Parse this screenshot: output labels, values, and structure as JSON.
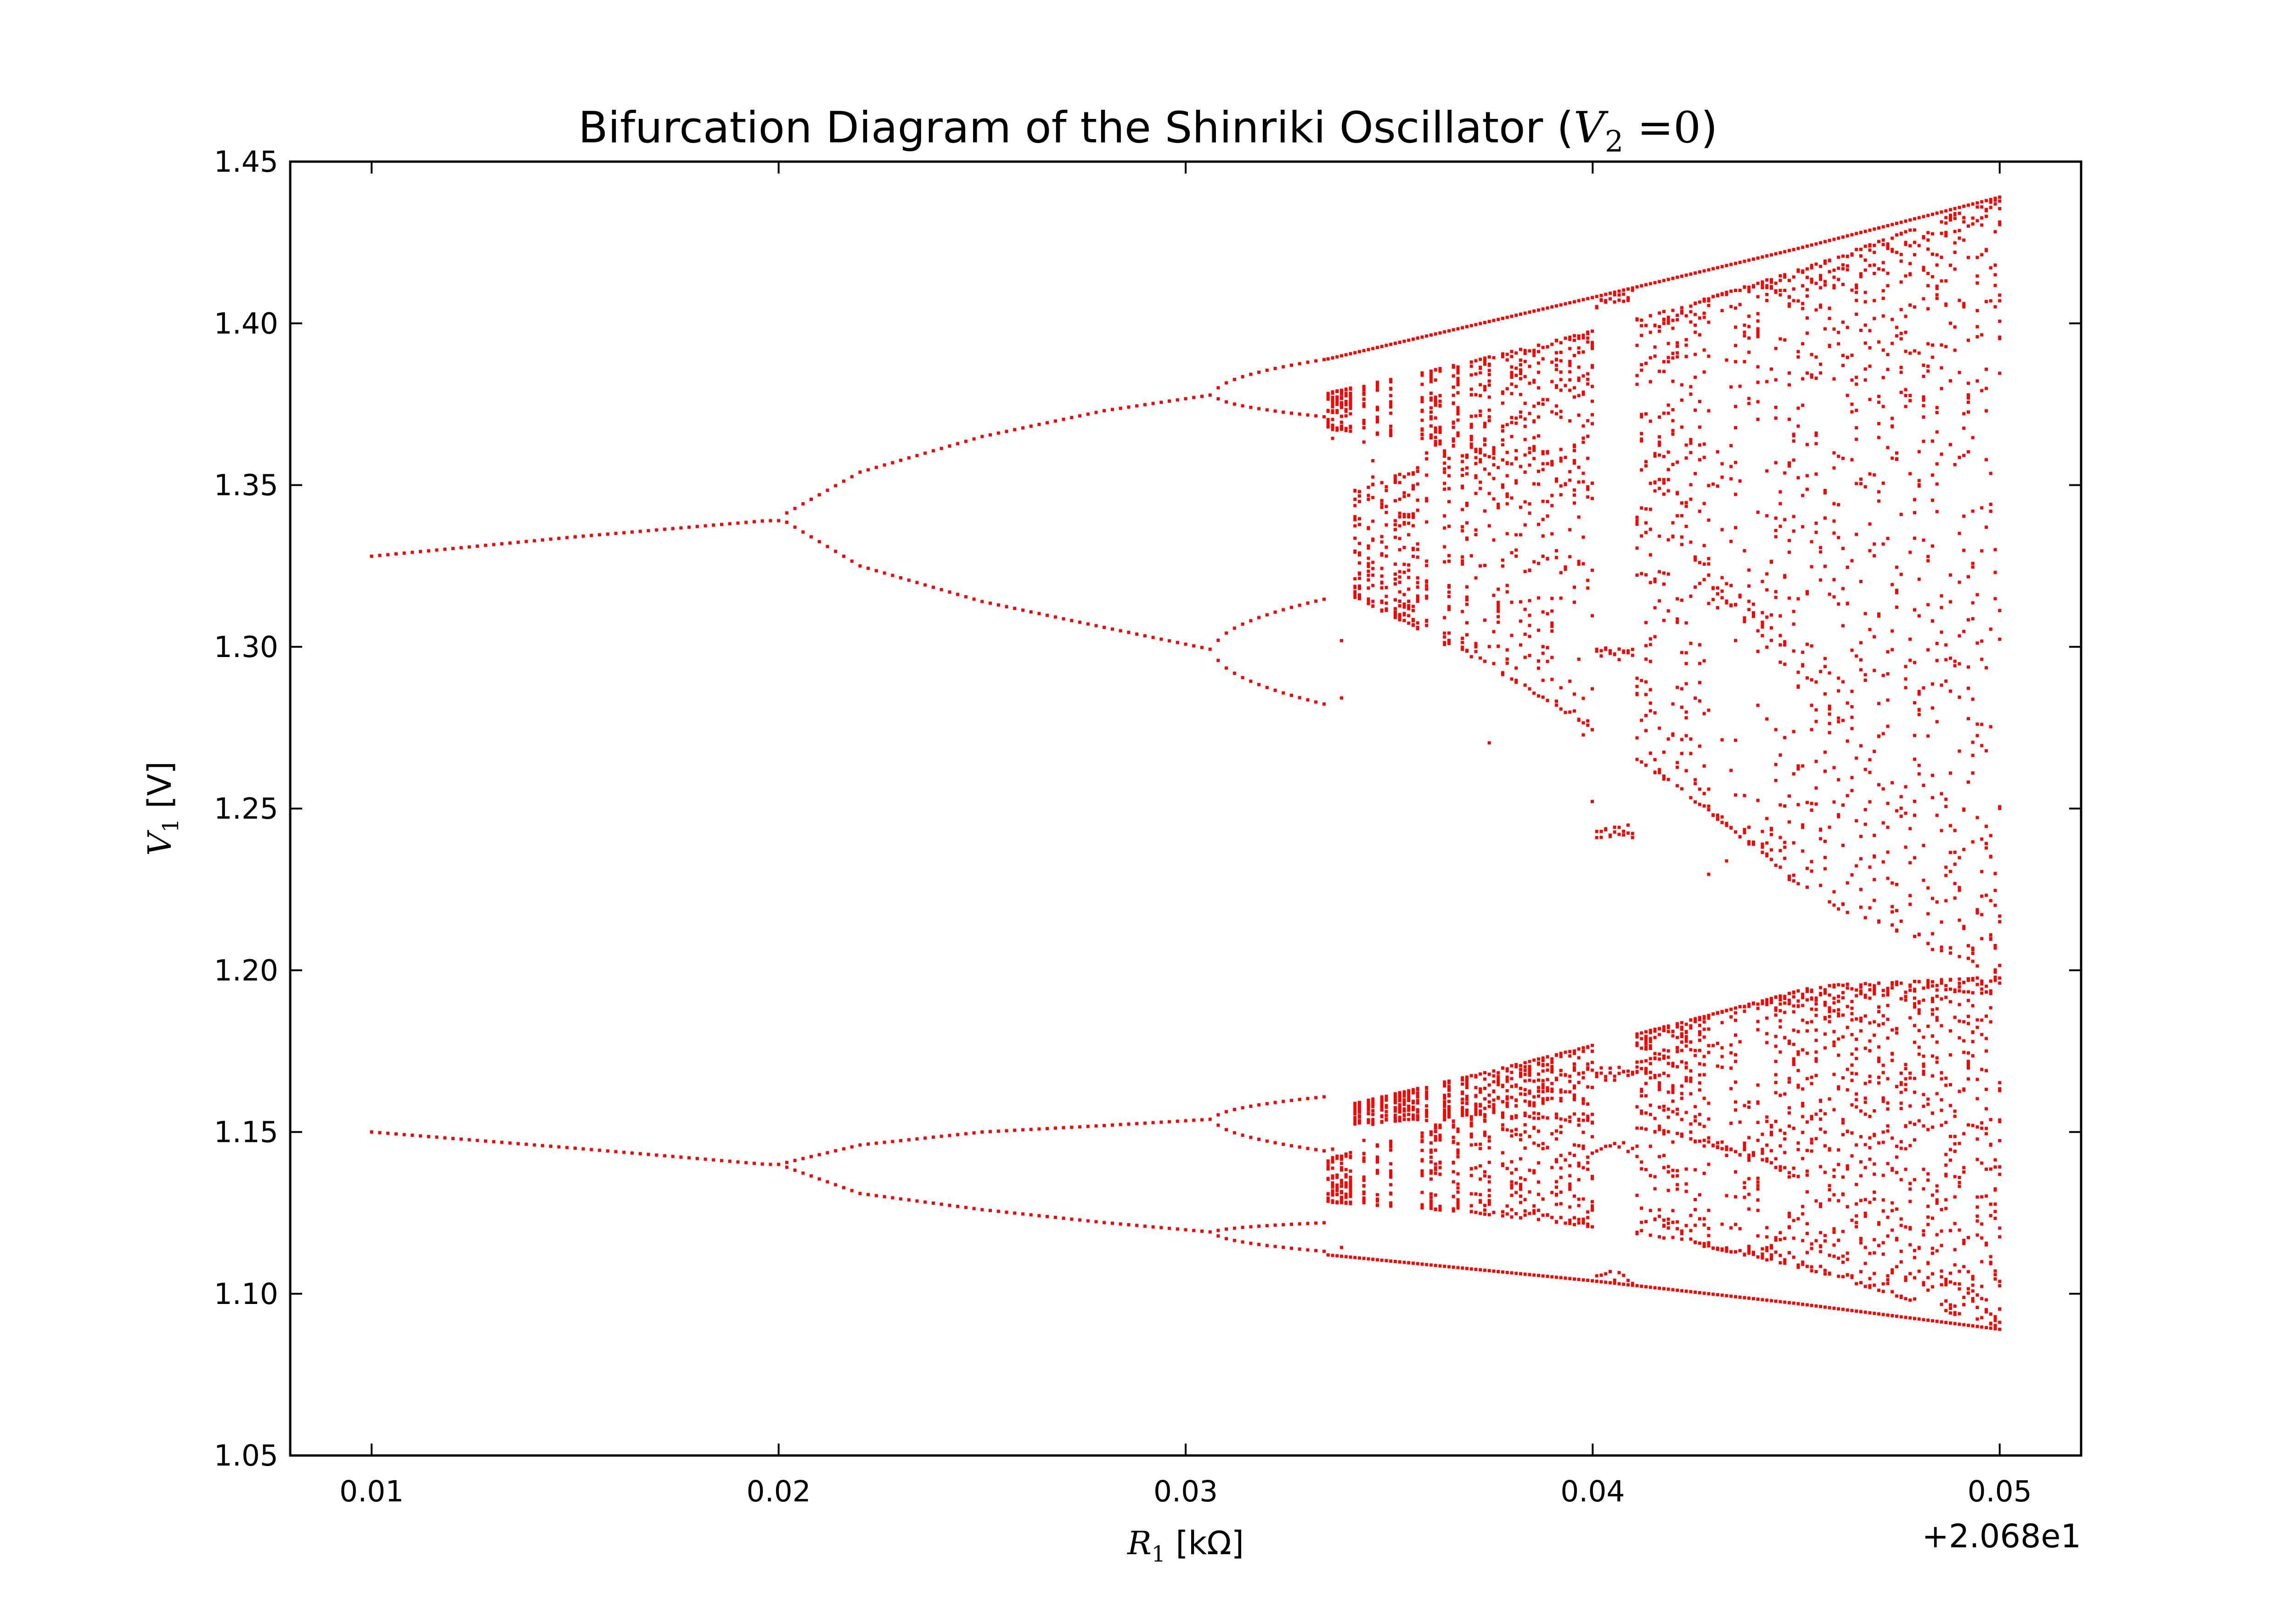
{
  "chart_data": {
    "type": "scatter",
    "title_prefix": "Bifurcation Diagram of the Shinriki Oscillator (",
    "title_math_symbol": "V",
    "title_math_subscript": "2",
    "title_math_rest": " =0",
    "title_suffix": ")",
    "xlabel_symbol": "R",
    "xlabel_subscript": "1",
    "xlabel_unit": " [kΩ]",
    "ylabel_symbol": "V",
    "ylabel_subscript": "1",
    "ylabel_unit": " [V]",
    "x_offset_text": "+2.068e1",
    "x_offset": 20.68,
    "xlim": [
      0.008,
      0.052
    ],
    "ylim": [
      1.05,
      1.45
    ],
    "xticks": [
      0.01,
      0.02,
      0.03,
      0.04,
      0.05
    ],
    "xtick_labels": [
      "0.01",
      "0.02",
      "0.03",
      "0.04",
      "0.05"
    ],
    "yticks": [
      1.05,
      1.1,
      1.15,
      1.2,
      1.25,
      1.3,
      1.35,
      1.4,
      1.45
    ],
    "ytick_labels": [
      "1.05",
      "1.10",
      "1.15",
      "1.20",
      "1.25",
      "1.30",
      "1.35",
      "1.40",
      "1.45"
    ],
    "grid": false,
    "marker_color": "#ff0000",
    "series_description_points": {
      "upper_branch_period1": [
        [
          0.01,
          1.328
        ],
        [
          0.015,
          1.334
        ],
        [
          0.0197,
          1.339
        ]
      ],
      "upper_branch_period2_top": [
        [
          0.02,
          1.34
        ],
        [
          0.022,
          1.354
        ],
        [
          0.025,
          1.365
        ],
        [
          0.028,
          1.373
        ],
        [
          0.0307,
          1.378
        ]
      ],
      "upper_branch_period2_bottom": [
        [
          0.02,
          1.34
        ],
        [
          0.022,
          1.325
        ],
        [
          0.025,
          1.314
        ],
        [
          0.028,
          1.306
        ],
        [
          0.0307,
          1.299
        ]
      ],
      "lower_branch_period1": [
        [
          0.01,
          1.15
        ],
        [
          0.015,
          1.145
        ],
        [
          0.0197,
          1.14
        ]
      ],
      "lower_branch_period2_top": [
        [
          0.02,
          1.14
        ],
        [
          0.022,
          1.146
        ],
        [
          0.025,
          1.15
        ],
        [
          0.028,
          1.152
        ],
        [
          0.0307,
          1.154
        ]
      ],
      "lower_branch_period2_bottom": [
        [
          0.02,
          1.14
        ],
        [
          0.022,
          1.131
        ],
        [
          0.025,
          1.126
        ],
        [
          0.028,
          1.122
        ],
        [
          0.0307,
          1.119
        ]
      ],
      "chaos_upper_envelope": [
        [
          0.0335,
          1.389
        ],
        [
          0.04,
          1.408
        ],
        [
          0.045,
          1.423
        ],
        [
          0.05,
          1.439
        ]
      ],
      "chaos_lower_envelope": [
        [
          0.0335,
          1.112
        ],
        [
          0.04,
          1.104
        ],
        [
          0.045,
          1.097
        ],
        [
          0.05,
          1.089
        ]
      ],
      "periodic_window_x": [
        0.04,
        0.041
      ]
    }
  }
}
